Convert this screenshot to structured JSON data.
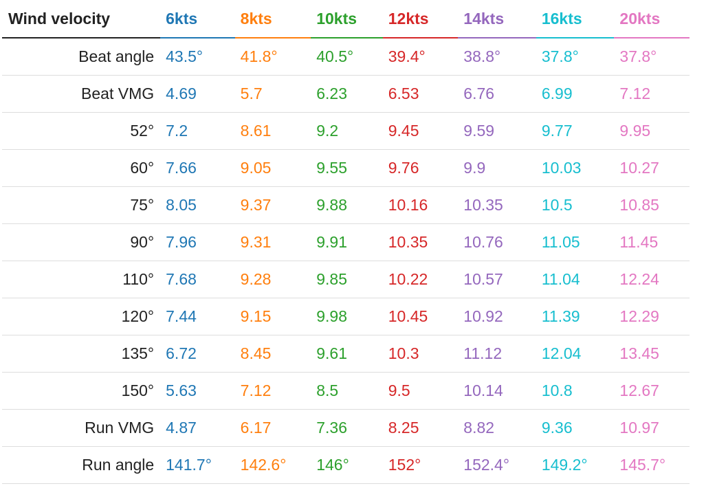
{
  "table": {
    "header_label": "Wind velocity",
    "columns": [
      {
        "label": "6kts",
        "color": "#1f77b4"
      },
      {
        "label": "8kts",
        "color": "#ff7f0e"
      },
      {
        "label": "10kts",
        "color": "#2ca02c"
      },
      {
        "label": "12kts",
        "color": "#d62728"
      },
      {
        "label": "14kts",
        "color": "#9467bd"
      },
      {
        "label": "16kts",
        "color": "#17becf"
      },
      {
        "label": "20kts",
        "color": "#e377c2"
      }
    ],
    "rows": [
      {
        "label": "Beat angle",
        "values": [
          "43.5°",
          "41.8°",
          "40.5°",
          "39.4°",
          "38.8°",
          "37.8°",
          "37.8°"
        ]
      },
      {
        "label": "Beat VMG",
        "values": [
          "4.69",
          "5.7",
          "6.23",
          "6.53",
          "6.76",
          "6.99",
          "7.12"
        ]
      },
      {
        "label": "52°",
        "values": [
          "7.2",
          "8.61",
          "9.2",
          "9.45",
          "9.59",
          "9.77",
          "9.95"
        ]
      },
      {
        "label": "60°",
        "values": [
          "7.66",
          "9.05",
          "9.55",
          "9.76",
          "9.9",
          "10.03",
          "10.27"
        ]
      },
      {
        "label": "75°",
        "values": [
          "8.05",
          "9.37",
          "9.88",
          "10.16",
          "10.35",
          "10.5",
          "10.85"
        ]
      },
      {
        "label": "90°",
        "values": [
          "7.96",
          "9.31",
          "9.91",
          "10.35",
          "10.76",
          "11.05",
          "11.45"
        ]
      },
      {
        "label": "110°",
        "values": [
          "7.68",
          "9.28",
          "9.85",
          "10.22",
          "10.57",
          "11.04",
          "12.24"
        ]
      },
      {
        "label": "120°",
        "values": [
          "7.44",
          "9.15",
          "9.98",
          "10.45",
          "10.92",
          "11.39",
          "12.29"
        ]
      },
      {
        "label": "135°",
        "values": [
          "6.72",
          "8.45",
          "9.61",
          "10.3",
          "11.12",
          "12.04",
          "13.45"
        ]
      },
      {
        "label": "150°",
        "values": [
          "5.63",
          "7.12",
          "8.5",
          "9.5",
          "10.14",
          "10.8",
          "12.67"
        ]
      },
      {
        "label": "Run VMG",
        "values": [
          "4.87",
          "6.17",
          "7.36",
          "8.25",
          "8.82",
          "9.36",
          "10.97"
        ]
      },
      {
        "label": "Run angle",
        "values": [
          "141.7°",
          "142.6°",
          "146°",
          "152°",
          "152.4°",
          "149.2°",
          "145.7°"
        ]
      }
    ]
  }
}
